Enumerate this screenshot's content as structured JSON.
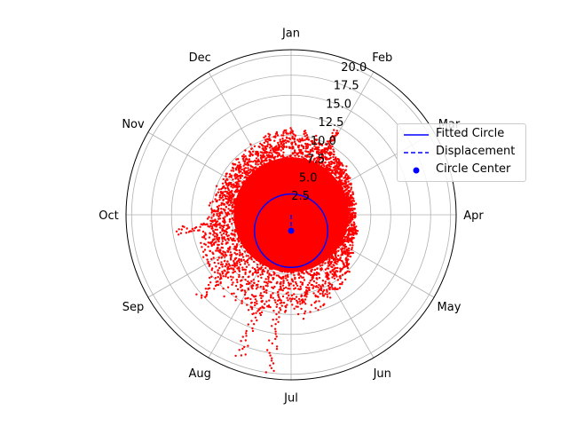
{
  "chart_data": {
    "type": "scatter",
    "projection": "polar",
    "theta_direction": "clockwise",
    "theta_zero": "top",
    "theta_ticks": [
      "Jan",
      "Feb",
      "Mar",
      "Apr",
      "May",
      "Jun",
      "Jul",
      "Aug",
      "Sep",
      "Oct",
      "Nov",
      "Dec"
    ],
    "r_ticks": [
      "2.5",
      "5.0",
      "7.5",
      "10.0",
      "12.5",
      "15.0",
      "17.5",
      "20.0"
    ],
    "rlim": [
      0,
      20.7
    ],
    "grid": true,
    "legend_placement": "right",
    "scatter": {
      "color": "#ff0000",
      "description": "dense red point cloud of daily values around the year",
      "typical_max_r": [
        {
          "month": "Jan",
          "r": 11.0
        },
        {
          "month": "Feb",
          "r": 10.0
        },
        {
          "month": "Mar",
          "r": 8.5
        },
        {
          "month": "Apr",
          "r": 8.0
        },
        {
          "month": "May",
          "r": 9.0
        },
        {
          "month": "Jun",
          "r": 11.5
        },
        {
          "month": "Jul",
          "r": 13.0
        },
        {
          "month": "Aug",
          "r": 13.0
        },
        {
          "month": "Sep",
          "r": 12.5
        },
        {
          "month": "Oct",
          "r": 10.5
        },
        {
          "month": "Nov",
          "r": 9.5
        },
        {
          "month": "Dec",
          "r": 10.0
        }
      ],
      "outliers": [
        {
          "theta_deg": 188,
          "r": 20.0
        },
        {
          "theta_deg": 200,
          "r": 19.0
        },
        {
          "theta_deg": 262,
          "r": 14.5
        },
        {
          "theta_deg": 228,
          "r": 15.5
        },
        {
          "theta_deg": 28,
          "r": 12.0
        }
      ]
    },
    "fitted_circle": {
      "center_r": 2.0,
      "center_theta_deg": 180,
      "radius": 4.6,
      "color": "#0000ff"
    },
    "circle_center": {
      "r": 2.0,
      "theta_deg": 180,
      "color": "#0000ff"
    },
    "displacement": {
      "from_r": 0,
      "to_r": 2.0,
      "theta_deg": 180,
      "color": "#0000ff"
    },
    "legend": [
      {
        "label": "Fitted Circle",
        "style": "solid-line",
        "color": "#0000ff"
      },
      {
        "label": "Displacement",
        "style": "dashed-line",
        "color": "#0000ff"
      },
      {
        "label": "Circle Center",
        "style": "marker",
        "color": "#0000ff"
      }
    ]
  }
}
